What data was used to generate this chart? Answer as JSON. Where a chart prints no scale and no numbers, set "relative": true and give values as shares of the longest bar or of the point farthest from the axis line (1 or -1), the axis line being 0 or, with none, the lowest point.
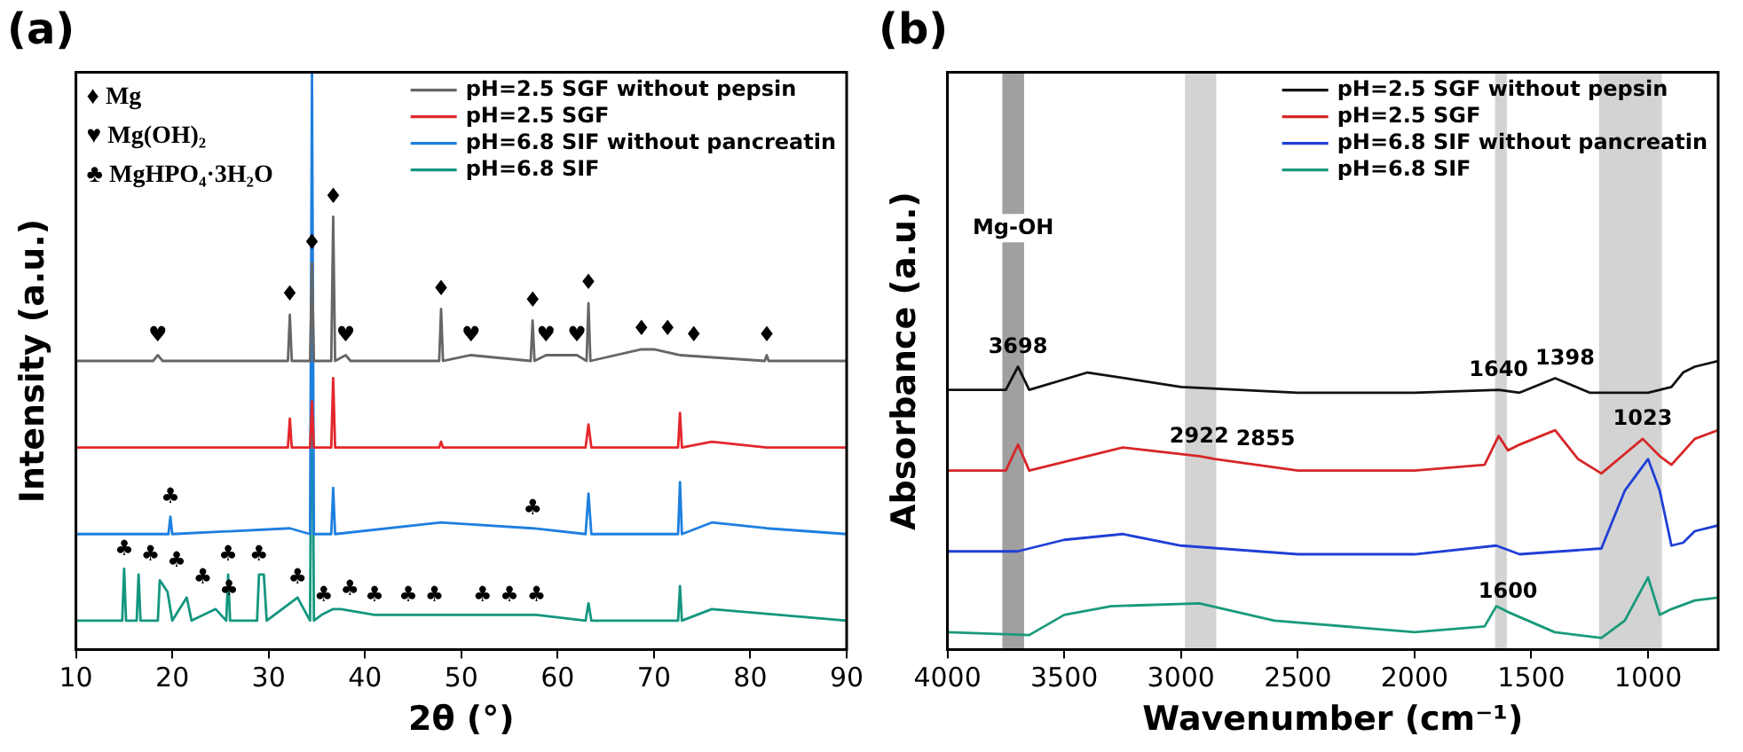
{
  "chart_data": [
    {
      "type": "line",
      "title": "(a)",
      "xlabel": "2θ (°)",
      "ylabel": "Intensity (a.u.)",
      "relative": true,
      "xlim": [
        10,
        90
      ],
      "xticks": [
        10,
        20,
        30,
        40,
        50,
        60,
        70,
        80,
        90
      ],
      "legend": "top right",
      "grid": false,
      "series": [
        {
          "name": "pH=2.5 SGF without pepsin",
          "color": "#666666",
          "x": [
            10,
            18,
            18.5,
            19,
            32,
            32.2,
            32.4,
            34.3,
            34.5,
            34.7,
            36.5,
            36.7,
            36.9,
            38,
            38.5,
            47.7,
            47.9,
            48.1,
            51,
            57.2,
            57.4,
            57.6,
            58.8,
            62,
            63,
            63.2,
            63.4,
            68.7,
            70,
            72.7,
            81.5,
            81.7,
            81.9,
            90
          ],
          "values": [
            0.5,
            0.5,
            0.51,
            0.5,
            0.5,
            0.58,
            0.5,
            0.5,
            0.67,
            0.5,
            0.5,
            0.75,
            0.5,
            0.51,
            0.5,
            0.5,
            0.59,
            0.5,
            0.51,
            0.5,
            0.57,
            0.5,
            0.51,
            0.51,
            0.5,
            0.6,
            0.5,
            0.52,
            0.52,
            0.51,
            0.5,
            0.51,
            0.5,
            0.5
          ]
        },
        {
          "name": "pH=2.5 SGF",
          "color": "#e3272b",
          "x": [
            10,
            32,
            32.2,
            32.4,
            34.3,
            34.5,
            34.7,
            36.5,
            36.7,
            36.9,
            47.7,
            47.9,
            48.1,
            62.9,
            63.2,
            63.5,
            72.5,
            72.7,
            72.9,
            76,
            81.7,
            90
          ],
          "values": [
            0.35,
            0.35,
            0.4,
            0.35,
            0.35,
            0.43,
            0.35,
            0.35,
            0.47,
            0.35,
            0.35,
            0.36,
            0.35,
            0.35,
            0.39,
            0.35,
            0.35,
            0.41,
            0.35,
            0.36,
            0.35,
            0.35
          ]
        },
        {
          "name": "pH=6.8 SIF without pancreatin",
          "color": "#1e7fe0",
          "x": [
            10,
            19.6,
            19.8,
            20,
            32.2,
            34.3,
            34.5,
            34.7,
            36.5,
            36.7,
            36.9,
            47.9,
            57.4,
            62.9,
            63.2,
            63.5,
            72.5,
            72.7,
            72.9,
            76,
            81.7,
            90
          ],
          "values": [
            0.2,
            0.2,
            0.23,
            0.2,
            0.21,
            0.2,
            1.0,
            0.2,
            0.2,
            0.28,
            0.2,
            0.22,
            0.21,
            0.2,
            0.27,
            0.2,
            0.2,
            0.29,
            0.2,
            0.22,
            0.21,
            0.2
          ]
        },
        {
          "name": "pH=6.8 SIF",
          "color": "#14967f",
          "x": [
            10,
            14.8,
            15,
            15.2,
            16.3,
            16.5,
            16.7,
            18.5,
            18.7,
            19.5,
            20,
            21.5,
            22,
            24.5,
            25.6,
            25.8,
            26,
            28.8,
            29,
            29.5,
            29.8,
            32.2,
            33,
            34.3,
            34.5,
            34.7,
            35.5,
            36.7,
            37.5,
            41,
            44.5,
            47,
            52.2,
            55,
            57.8,
            62.9,
            63.2,
            63.5,
            72.5,
            72.7,
            72.9,
            76,
            90
          ],
          "values": [
            0.05,
            0.05,
            0.14,
            0.05,
            0.05,
            0.13,
            0.05,
            0.05,
            0.12,
            0.1,
            0.05,
            0.09,
            0.05,
            0.07,
            0.05,
            0.13,
            0.05,
            0.05,
            0.13,
            0.13,
            0.05,
            0.08,
            0.09,
            0.05,
            0.6,
            0.05,
            0.06,
            0.07,
            0.07,
            0.06,
            0.06,
            0.06,
            0.06,
            0.06,
            0.06,
            0.05,
            0.08,
            0.05,
            0.05,
            0.11,
            0.05,
            0.07,
            0.05
          ]
        }
      ],
      "annotations": [
        "♦ Mg",
        "♥ Mg(OH)₂",
        "♣ MgHPO₄·3H₂O",
        {
          "text": "♦",
          "x": 32.2,
          "y": 0.58
        },
        {
          "text": "♦",
          "x": 34.5,
          "y": 0.67
        },
        {
          "text": "♦",
          "x": 36.7,
          "y": 0.75
        },
        {
          "text": "♦",
          "x": 47.9,
          "y": 0.59
        },
        {
          "text": "♦",
          "x": 57.4,
          "y": 0.57
        },
        {
          "text": "♦",
          "x": 63.2,
          "y": 0.6
        },
        {
          "text": "♦",
          "x": 68.7,
          "y": 0.52
        },
        {
          "text": "♦",
          "x": 70,
          "y": 0.52
        },
        {
          "text": "♦",
          "x": 72.7,
          "y": 0.51
        },
        {
          "text": "♦",
          "x": 81.7,
          "y": 0.51
        },
        {
          "text": "♥",
          "x": 18.5,
          "y": 0.51
        },
        {
          "text": "♥",
          "x": 38,
          "y": 0.51
        },
        {
          "text": "♥",
          "x": 51,
          "y": 0.51
        },
        {
          "text": "♥",
          "x": 58.8,
          "y": 0.51
        },
        {
          "text": "♥",
          "x": 62,
          "y": 0.51
        },
        {
          "text": "♣",
          "x": 19.8,
          "y": 0.23
        },
        {
          "text": "♣",
          "x": 57.4,
          "y": 0.21
        },
        {
          "text": "♣",
          "x": 15,
          "y": 0.14
        },
        {
          "text": "♣",
          "x": 16.5,
          "y": 0.13
        },
        {
          "text": "♣",
          "x": 18.7,
          "y": 0.12
        },
        {
          "text": "♣",
          "x": 21.5,
          "y": 0.09
        },
        {
          "text": "♣",
          "x": 24.5,
          "y": 0.07
        },
        {
          "text": "♣",
          "x": 25.8,
          "y": 0.13
        },
        {
          "text": "♣",
          "x": 29,
          "y": 0.13
        },
        {
          "text": "♣",
          "x": 33,
          "y": 0.09
        },
        {
          "text": "♣",
          "x": 35.5,
          "y": 0.06
        },
        {
          "text": "♣",
          "x": 37.5,
          "y": 0.07
        },
        {
          "text": "♣",
          "x": 41,
          "y": 0.06
        },
        {
          "text": "♣",
          "x": 44.5,
          "y": 0.06
        },
        {
          "text": "♣",
          "x": 47,
          "y": 0.06
        },
        {
          "text": "♣",
          "x": 52.2,
          "y": 0.06
        },
        {
          "text": "♣",
          "x": 55,
          "y": 0.06
        },
        {
          "text": "♣",
          "x": 57.8,
          "y": 0.06
        }
      ]
    },
    {
      "type": "line",
      "title": "(b)",
      "xlabel": "Wavenumber (cm⁻¹)",
      "ylabel": "Absorbance (a.u.)",
      "relative": true,
      "xlim": [
        4000,
        700
      ],
      "xticks": [
        4000,
        3500,
        3000,
        2500,
        2000,
        1500,
        1000
      ],
      "legend": "top right",
      "grid": false,
      "series": [
        {
          "name": "pH=2.5 SGF without pepsin",
          "color": "#111111",
          "x": [
            4000,
            3750,
            3698,
            3650,
            3400,
            3000,
            2500,
            2000,
            1640,
            1550,
            1398,
            1250,
            1000,
            900,
            850,
            800,
            700
          ],
          "values": [
            0.9,
            0.9,
            0.98,
            0.9,
            0.96,
            0.91,
            0.89,
            0.89,
            0.9,
            0.89,
            0.94,
            0.89,
            0.89,
            0.91,
            0.96,
            0.98,
            1.0
          ]
        },
        {
          "name": "pH=2.5 SGF",
          "color": "#d62728",
          "x": [
            4000,
            3750,
            3698,
            3650,
            3250,
            2922,
            2855,
            2500,
            2000,
            1700,
            1640,
            1600,
            1550,
            1398,
            1300,
            1200,
            1023,
            950,
            900,
            800,
            700
          ],
          "values": [
            0.62,
            0.62,
            0.71,
            0.62,
            0.7,
            0.67,
            0.66,
            0.62,
            0.62,
            0.64,
            0.74,
            0.69,
            0.71,
            0.76,
            0.66,
            0.61,
            0.73,
            0.67,
            0.64,
            0.73,
            0.76
          ]
        },
        {
          "name": "pH=6.8 SIF without pancreatin",
          "color": "#1f3fd6",
          "x": [
            4000,
            3700,
            3500,
            3250,
            3000,
            2500,
            2000,
            1650,
            1550,
            1200,
            1100,
            1000,
            950,
            900,
            850,
            800,
            700
          ],
          "values": [
            0.34,
            0.34,
            0.38,
            0.4,
            0.36,
            0.33,
            0.33,
            0.36,
            0.33,
            0.35,
            0.55,
            0.66,
            0.55,
            0.36,
            0.37,
            0.41,
            0.43
          ]
        },
        {
          "name": "pH=6.8 SIF",
          "color": "#1a9a7a",
          "x": [
            4000,
            3650,
            3500,
            3300,
            2922,
            2600,
            2000,
            1700,
            1650,
            1600,
            1400,
            1200,
            1100,
            1000,
            950,
            900,
            800,
            700
          ],
          "values": [
            0.06,
            0.05,
            0.12,
            0.15,
            0.16,
            0.1,
            0.06,
            0.08,
            0.15,
            0.13,
            0.06,
            0.04,
            0.1,
            0.25,
            0.12,
            0.14,
            0.17,
            0.18
          ]
        }
      ],
      "bands": [
        {
          "axis": "x",
          "from": 3765,
          "to": 3672,
          "color": "#a0a0a0",
          "label": "Mg-OH"
        },
        {
          "axis": "x",
          "from": 2983,
          "to": 2849,
          "color": "#d3d3d3"
        },
        {
          "axis": "x",
          "from": 1655,
          "to": 1605,
          "color": "#d3d3d3"
        },
        {
          "axis": "x",
          "from": 1210,
          "to": 941,
          "color": "#d3d3d3"
        }
      ],
      "annotations": [
        {
          "text": "3698",
          "x": 3698,
          "y": 0.98
        },
        {
          "text": "2922",
          "x": 2922,
          "y": 0.67
        },
        {
          "text": "2855",
          "x": 2855,
          "y": 0.66
        },
        {
          "text": "1640",
          "x": 1640,
          "y": 0.9
        },
        {
          "text": "1398",
          "x": 1398,
          "y": 0.94
        },
        {
          "text": "1023",
          "x": 1023,
          "y": 0.73
        },
        {
          "text": "1600",
          "x": 1600,
          "y": 0.13
        }
      ]
    }
  ]
}
